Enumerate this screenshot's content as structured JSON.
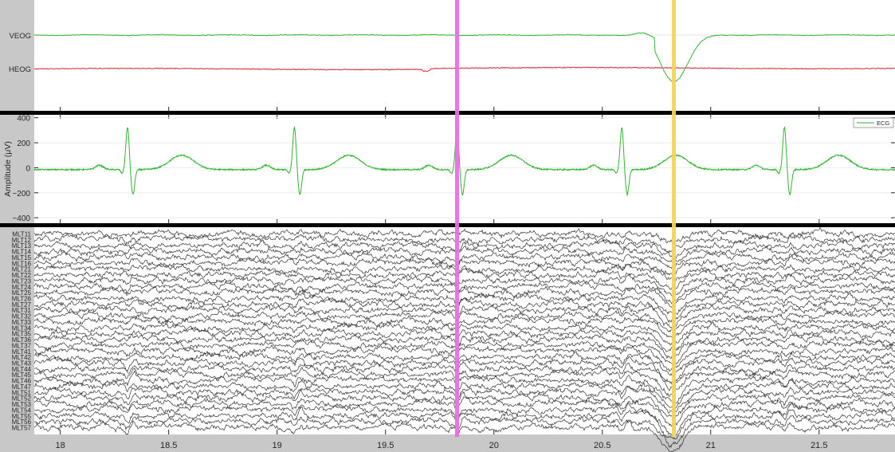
{
  "chart_data": [
    {
      "panel": "eog",
      "type": "line",
      "title": "",
      "xlabel": "",
      "ylabel": "",
      "xlim": [
        17.88,
        21.85
      ],
      "grid": false,
      "channels": [
        {
          "name": "VEOG",
          "color": "#2fb52f",
          "baseline_offset": 0,
          "blink_events": [
            {
              "t": 20.82,
              "peak": -1.0
            }
          ]
        },
        {
          "name": "HEOG",
          "color": "#d92b3a",
          "baseline_offset": 0,
          "step_events": [
            {
              "t": 19.68
            }
          ]
        }
      ]
    },
    {
      "panel": "ecg",
      "type": "line",
      "title": "",
      "xlabel": "",
      "ylabel": "Amplitude (μV)",
      "xlim": [
        17.88,
        21.85
      ],
      "ylim": [
        -450,
        430
      ],
      "yticks": [
        400,
        200,
        0,
        -200,
        -400
      ],
      "ytick_labels": [
        "400",
        "200",
        "0",
        "−200",
        "−400"
      ],
      "grid": true,
      "legend": {
        "position": "top-right",
        "entries": [
          "ECG"
        ]
      },
      "series": [
        {
          "name": "ECG",
          "color": "#2fb52f",
          "r_peaks": [
            18.31,
            19.08,
            19.83,
            20.59,
            21.34
          ],
          "r_amplitude": 340,
          "s_amplitude": -200,
          "t_amplitude": 115
        }
      ]
    },
    {
      "panel": "meg",
      "type": "line",
      "title": "",
      "xlabel": "",
      "ylabel": "",
      "xlim": [
        17.88,
        21.85
      ],
      "xticks": [
        18,
        18.5,
        19,
        19.5,
        20,
        20.5,
        21,
        21.5
      ],
      "xtick_labels": [
        "18",
        "18.5",
        "19",
        "19.5",
        "20",
        "20.5",
        "21",
        "21.5"
      ],
      "grid": false,
      "channel_color": "#1e1e1e",
      "channels": [
        "MLT11",
        "MLT12",
        "MLT13",
        "MLT14",
        "MLT15",
        "MLT16",
        "MLT21",
        "MLT22",
        "MLT23",
        "MLT24",
        "MLT25",
        "MLT26",
        "MLT27",
        "MLT31",
        "MLT32",
        "MLT33",
        "MLT34",
        "MLT35",
        "MLT36",
        "MLT37",
        "MLT41",
        "MLT42",
        "MLT43",
        "MLT44",
        "MLT45",
        "MLT46",
        "MLT47",
        "MLT51",
        "MLT52",
        "MLT53",
        "MLT54",
        "MLT55",
        "MLT56",
        "MLT57"
      ],
      "blink_artifact_t": 20.82
    }
  ],
  "markers": [
    {
      "name": "cursor-magenta",
      "t": 19.83,
      "color": "#ee6ce6"
    },
    {
      "name": "cursor-yellow",
      "t": 20.83,
      "color": "#f7d35c"
    }
  ]
}
